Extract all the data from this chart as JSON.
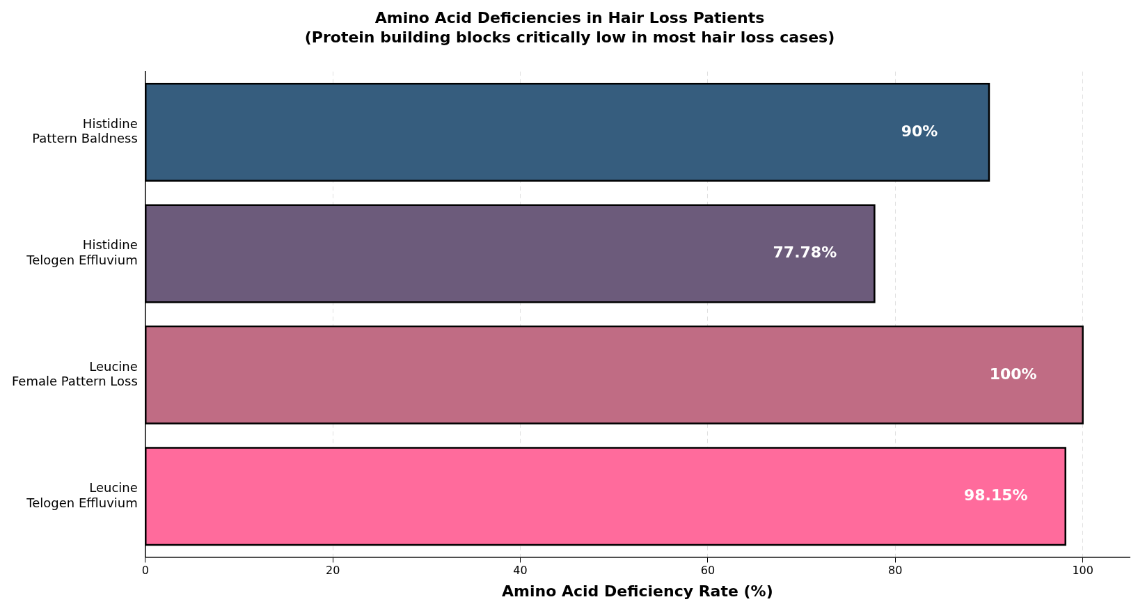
{
  "chart_data": {
    "type": "bar",
    "orientation": "horizontal",
    "title": "Amino Acid Deficiencies in Hair Loss Patients",
    "subtitle": "(Protein building blocks critically low in most hair loss cases)",
    "xlabel": "Amino Acid Deficiency Rate (%)",
    "categories": [
      "Histidine\nPattern Baldness",
      "Histidine\nTelogen Effluvium",
      "Leucine\nFemale Pattern Loss",
      "Leucine\nTelogen Effluvium"
    ],
    "values": [
      90,
      77.78,
      100,
      98.15
    ],
    "value_labels": [
      "90%",
      "77.78%",
      "100%",
      "98.15%"
    ],
    "colors": [
      "#365d7e",
      "#6c5b7b",
      "#c06c84",
      "#ff6b9c"
    ],
    "xlim": [
      0,
      105
    ],
    "xticks": [
      0,
      20,
      40,
      60,
      80,
      100
    ],
    "grid": "x",
    "legend": false
  }
}
